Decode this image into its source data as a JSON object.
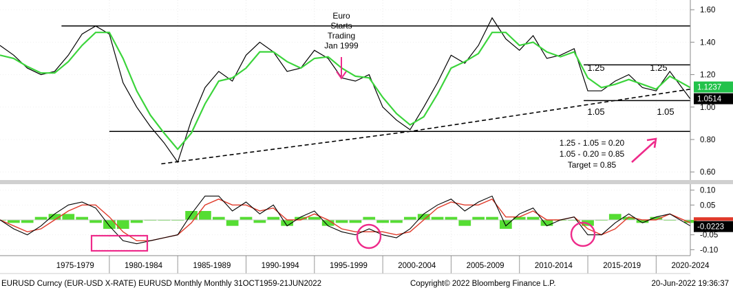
{
  "colors": {
    "price": "#000000",
    "ma": "#3bd43b",
    "macd_line": "#000000",
    "signal_line": "#e03a2a",
    "histogram": "#55dd33",
    "fill_red": "#ee8877",
    "accent": "#ee2a8a",
    "badge_green": "#22c24a",
    "badge_black": "#000000",
    "badge_red": "#e03a2a"
  },
  "footer": {
    "left": "EURUSD Curncy (EUR-USD X-RATE) EURUSD Monthly  Monthly 31OCT1959-21JUN2022",
    "center": "Copyright© 2022 Bloomberg Finance L.P.",
    "right": "20-Jun-2022 19:36:37"
  },
  "annotations": {
    "euro_starts": [
      "Euro",
      "Starts",
      "Trading",
      "Jan 1999"
    ],
    "upper_label_1": "1.25",
    "upper_label_2": "1.25",
    "lower_label_1": "1.05",
    "lower_label_2": "1.05",
    "calc": [
      "1.25 - 1.05 = 0.20",
      "1.05 - 0.20 = 0.85",
      "Target = 0.85"
    ]
  },
  "badges": {
    "ma_value": "1.1237",
    "last_price": "1.0514",
    "macd_value": "-0.0223"
  },
  "chart_data": [
    {
      "type": "line",
      "title": "",
      "x": [
        1972,
        1973,
        1974,
        1975,
        1976,
        1977,
        1978,
        1979,
        1980,
        1981,
        1982,
        1983,
        1984,
        1985,
        1986,
        1987,
        1988,
        1989,
        1990,
        1991,
        1992,
        1993,
        1994,
        1995,
        1996,
        1997,
        1998,
        1999,
        2000,
        2001,
        2002,
        2003,
        2004,
        2005,
        2006,
        2007,
        2008,
        2009,
        2010,
        2011,
        2012,
        2013,
        2014,
        2015,
        2016,
        2017,
        2018,
        2019,
        2020,
        2021,
        2022.5
      ],
      "series": [
        {
          "values": [
            1.38,
            1.32,
            1.24,
            1.2,
            1.22,
            1.32,
            1.45,
            1.5,
            1.45,
            1.15,
            1.0,
            0.88,
            0.78,
            0.66,
            0.92,
            1.12,
            1.22,
            1.16,
            1.32,
            1.4,
            1.34,
            1.22,
            1.24,
            1.35,
            1.3,
            1.18,
            1.16,
            1.2,
            1.0,
            0.92,
            0.86,
            1.0,
            1.15,
            1.32,
            1.27,
            1.38,
            1.55,
            1.42,
            1.35,
            1.44,
            1.3,
            1.32,
            1.36,
            1.1,
            1.1,
            1.16,
            1.2,
            1.12,
            1.1,
            1.22,
            1.05
          ]
        },
        {
          "values": [
            1.32,
            1.3,
            1.25,
            1.21,
            1.21,
            1.28,
            1.38,
            1.46,
            1.46,
            1.3,
            1.1,
            0.95,
            0.84,
            0.74,
            0.84,
            1.02,
            1.16,
            1.18,
            1.24,
            1.34,
            1.34,
            1.28,
            1.24,
            1.3,
            1.31,
            1.24,
            1.19,
            1.18,
            1.06,
            0.96,
            0.89,
            0.94,
            1.08,
            1.24,
            1.28,
            1.33,
            1.46,
            1.46,
            1.38,
            1.4,
            1.34,
            1.31,
            1.34,
            1.18,
            1.12,
            1.14,
            1.17,
            1.14,
            1.11,
            1.19,
            1.12
          ]
        }
      ],
      "ylim": [
        0.55,
        1.66
      ],
      "y_ticks": [
        "0.60",
        "0.80",
        "1.00",
        "1.20",
        "1.40",
        "1.60"
      ],
      "x_labels": [
        "1975-1979",
        "1980-1984",
        "1985-1989",
        "1990-1994",
        "1995-1999",
        "2000-2004",
        "2005-2009",
        "2010-2014",
        "2015-2019",
        "2020-2024"
      ],
      "reference_lines": [
        {
          "kind": "horizontal",
          "value": 1.5,
          "x_range": [
            1976.5,
            2022.5
          ]
        },
        {
          "kind": "horizontal",
          "value": 0.85,
          "x_range": [
            1980,
            2022.5
          ]
        },
        {
          "kind": "horizontal",
          "value": 1.26,
          "x_range": [
            2014.7,
            2022.5
          ]
        },
        {
          "kind": "horizontal",
          "value": 1.04,
          "x_range": [
            2014.7,
            2022.5
          ]
        },
        {
          "kind": "trend",
          "points": [
            [
              1983.8,
              0.65
            ],
            [
              2002.0,
              0.85
            ],
            [
              2022.5,
              1.11
            ]
          ]
        }
      ],
      "grid": true
    },
    {
      "type": "line",
      "title": "",
      "x": [
        1972,
        1973,
        1974,
        1975,
        1976,
        1977,
        1978,
        1979,
        1980,
        1981,
        1982,
        1983,
        1984,
        1985,
        1986,
        1987,
        1988,
        1989,
        1990,
        1991,
        1992,
        1993,
        1994,
        1995,
        1996,
        1997,
        1998,
        1999,
        2000,
        2001,
        2002,
        2003,
        2004,
        2005,
        2006,
        2007,
        2008,
        2009,
        2010,
        2011,
        2012,
        2013,
        2014,
        2015,
        2016,
        2017,
        2018,
        2019,
        2020,
        2021,
        2022.5
      ],
      "series": [
        {
          "values": [
            0.0,
            -0.03,
            -0.05,
            -0.02,
            0.02,
            0.05,
            0.06,
            0.04,
            -0.02,
            -0.07,
            -0.08,
            -0.07,
            -0.06,
            -0.05,
            0.02,
            0.08,
            0.08,
            0.03,
            0.06,
            0.02,
            0.05,
            -0.02,
            0.01,
            0.03,
            -0.02,
            -0.04,
            -0.05,
            -0.03,
            -0.05,
            -0.06,
            -0.03,
            0.02,
            0.05,
            0.07,
            0.03,
            0.06,
            0.08,
            -0.02,
            0.02,
            0.04,
            -0.02,
            0.0,
            0.01,
            -0.05,
            -0.05,
            -0.01,
            0.02,
            -0.01,
            0.01,
            0.02,
            -0.02
          ]
        },
        {
          "values": [
            0.0,
            -0.02,
            -0.04,
            -0.03,
            0.0,
            0.03,
            0.05,
            0.05,
            0.01,
            -0.04,
            -0.07,
            -0.07,
            -0.06,
            -0.05,
            -0.01,
            0.05,
            0.07,
            0.05,
            0.05,
            0.03,
            0.04,
            0.0,
            0.0,
            0.02,
            0.0,
            -0.03,
            -0.04,
            -0.04,
            -0.04,
            -0.05,
            -0.04,
            0.0,
            0.04,
            0.06,
            0.05,
            0.05,
            0.07,
            0.01,
            0.01,
            0.03,
            0.0,
            0.0,
            0.01,
            -0.03,
            -0.05,
            -0.03,
            0.01,
            0.0,
            0.0,
            0.02,
            -0.01
          ]
        }
      ],
      "ylim": [
        -0.12,
        0.12
      ],
      "y_ticks": [
        "-0.10",
        "-0.05",
        "0.05",
        "0.10"
      ],
      "grid": true
    }
  ]
}
